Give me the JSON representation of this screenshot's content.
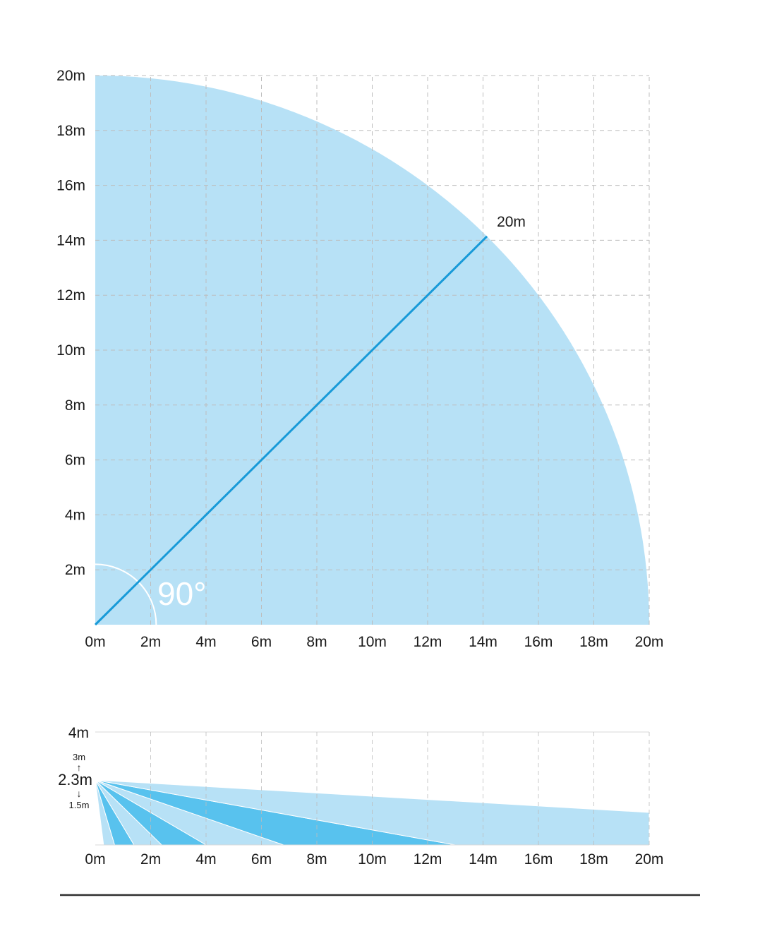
{
  "page": {
    "background": "#ffffff"
  },
  "colors": {
    "fill_light": "#b7e1f6",
    "fill_medium": "#58c2ee",
    "accent": "#189ad8",
    "grid": "#bdbdbd",
    "boundary": "#d8d8d8",
    "text": "#1a1a1a",
    "angle_text": "#ffffff",
    "divider": "#2f2f2f"
  },
  "chart_data": [
    {
      "type": "area",
      "name": "horizontal-detection-range",
      "shape": "quarter-circle-sector",
      "radius_m": 20,
      "angle_deg": 90,
      "angle_label": "90°",
      "radius_label": "20m",
      "x_range_m": [
        0,
        20
      ],
      "y_range_m": [
        0,
        20
      ],
      "grid": true,
      "x_ticks": [
        "0m",
        "2m",
        "4m",
        "6m",
        "8m",
        "10m",
        "12m",
        "14m",
        "16m",
        "18m",
        "20m"
      ],
      "y_ticks": [
        "2m",
        "4m",
        "6m",
        "8m",
        "10m",
        "12m",
        "14m",
        "16m",
        "18m",
        "20m"
      ]
    },
    {
      "type": "area",
      "name": "vertical-detection-range",
      "mount_height_m": 2.3,
      "mount_height_label": "2.3m",
      "height_max_label": "3m",
      "height_min_label": "1.5m",
      "top_tick_label": "4m",
      "y_max_m": 4,
      "x_range_m": [
        0,
        20
      ],
      "grid": true,
      "x_ticks": [
        "0m",
        "2m",
        "4m",
        "6m",
        "8m",
        "10m",
        "12m",
        "14m",
        "16m",
        "18m",
        "20m"
      ],
      "beams": [
        {
          "ground_from_m": 0.3,
          "ground_to_m": 0.7,
          "color": "light"
        },
        {
          "ground_from_m": 0.7,
          "ground_to_m": 1.4,
          "color": "medium"
        },
        {
          "ground_from_m": 1.4,
          "ground_to_m": 2.4,
          "color": "light"
        },
        {
          "ground_from_m": 2.4,
          "ground_to_m": 4.0,
          "color": "medium"
        },
        {
          "ground_from_m": 4.0,
          "ground_to_m": 6.8,
          "color": "light"
        },
        {
          "ground_from_m": 6.8,
          "ground_to_m": 13.0,
          "color": "medium"
        },
        {
          "ground_from_m": 13.0,
          "ground_to_m": 40.0,
          "color": "light"
        }
      ]
    }
  ]
}
